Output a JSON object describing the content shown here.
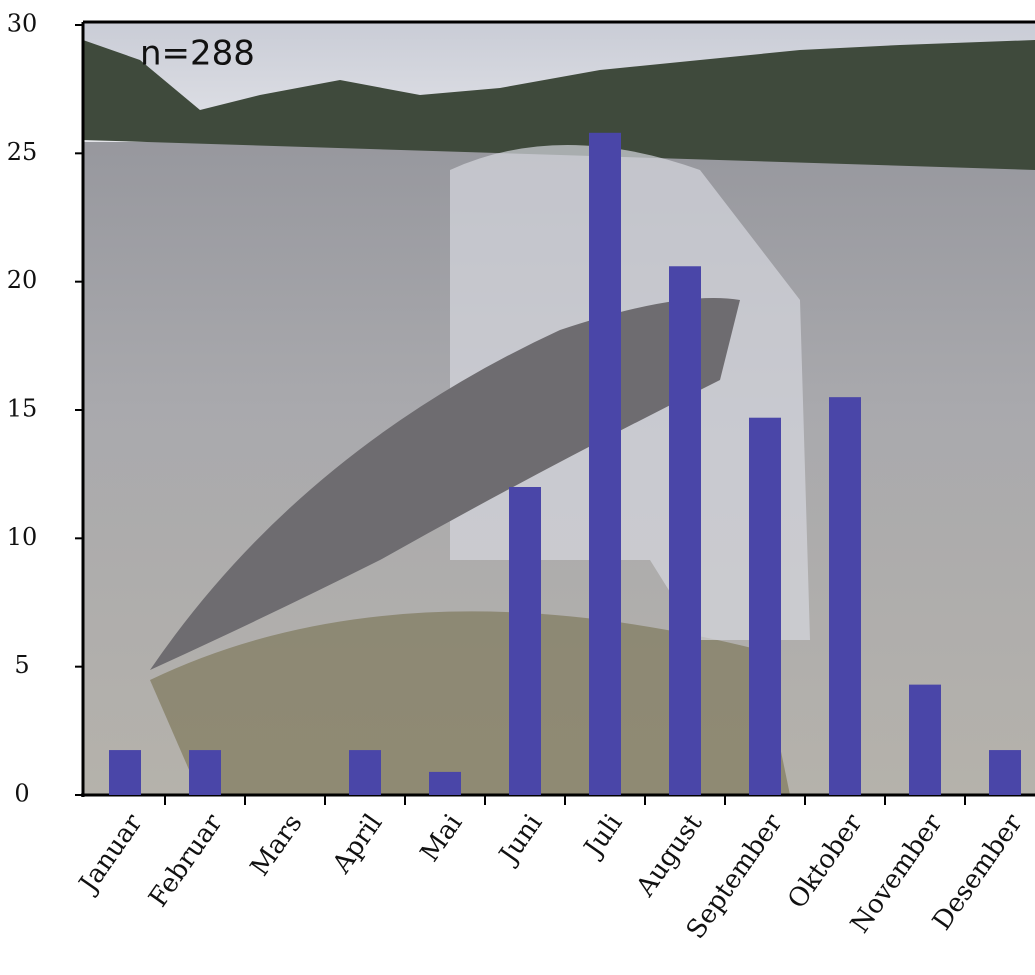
{
  "chart_data": {
    "type": "bar",
    "annotation": "n=288",
    "categories": [
      "Januar",
      "Februar",
      "Mars",
      "April",
      "Mai",
      "Juni",
      "Juli",
      "August",
      "September",
      "Oktober",
      "November",
      "Desember"
    ],
    "values": [
      1.75,
      1.75,
      0,
      1.75,
      0.9,
      12.0,
      25.8,
      20.6,
      14.7,
      15.5,
      4.3,
      1.75
    ],
    "color": "#4a46a8",
    "ylim": [
      0,
      30
    ],
    "yticks": [
      0,
      5,
      10,
      15,
      20,
      25,
      30
    ]
  }
}
